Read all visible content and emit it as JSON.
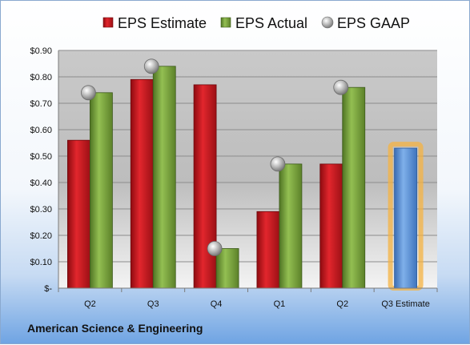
{
  "chart_data": {
    "type": "bar",
    "categories": [
      "Q2",
      "Q3",
      "Q4",
      "Q1",
      "Q2",
      "Q3 Estimate"
    ],
    "series": [
      {
        "name": "EPS Estimate",
        "type": "bar",
        "color": "#c8161d",
        "values": [
          0.56,
          0.79,
          0.77,
          0.29,
          0.47,
          null
        ]
      },
      {
        "name": "EPS Actual",
        "type": "bar",
        "color": "#77a33a",
        "values": [
          0.74,
          0.84,
          0.15,
          0.47,
          0.76,
          null
        ]
      },
      {
        "name": "EPS GAAP",
        "type": "scatter",
        "color": "#b8b8b8",
        "values": [
          0.74,
          0.84,
          0.15,
          0.47,
          0.76,
          null
        ]
      },
      {
        "name": "",
        "type": "bar",
        "color": "#5b8fd6",
        "highlight": "#f5b342",
        "values": [
          null,
          null,
          null,
          null,
          null,
          0.53
        ]
      }
    ],
    "ylim": [
      0,
      0.9
    ],
    "yticks": [
      "$-",
      "$0.10",
      "$0.20",
      "$0.30",
      "$0.40",
      "$0.50",
      "$0.60",
      "$0.70",
      "$0.80",
      "$0.90"
    ],
    "grid": true,
    "legend": "top",
    "footer": "American Science & Engineering"
  }
}
